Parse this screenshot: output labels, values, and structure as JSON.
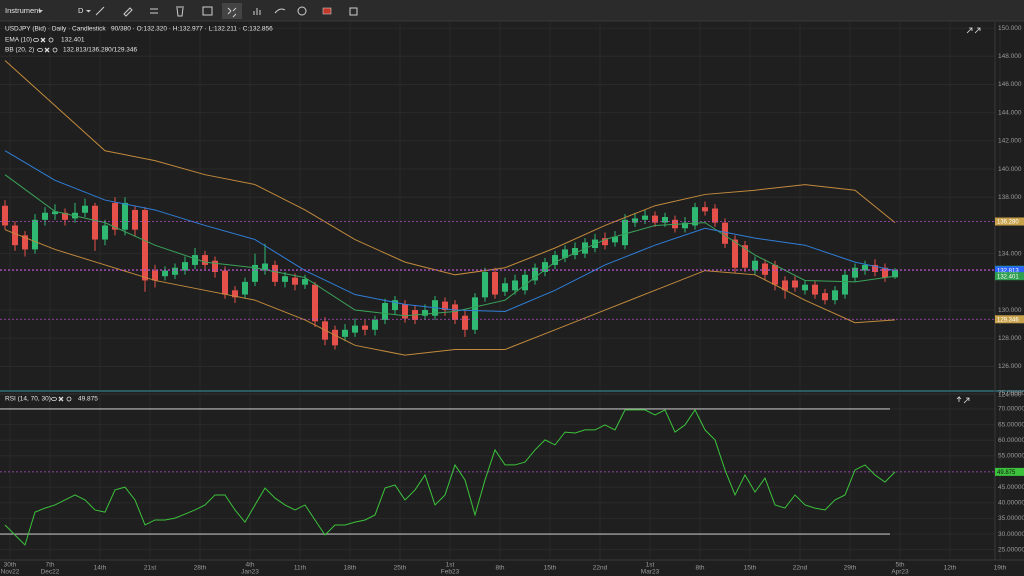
{
  "toolbar": {
    "instrument": "Instrument",
    "period": "D"
  },
  "chart_data": [
    {
      "type": "candlestick",
      "title": "USDJPY (Bid) · Daily · Candlestick",
      "subtitle": "90/380 · O:132.320 · H:132.977 · L:132.211 · C:132.856",
      "xlim": [
        -0.5,
        101.5
      ],
      "ylim": [
        124.33,
        150.43
      ],
      "yticks": [
        {
          "value": 150,
          "label": "150.000"
        },
        {
          "value": 148,
          "label": "148.000"
        },
        {
          "value": 146,
          "label": "146.000"
        },
        {
          "value": 144,
          "label": "144.000"
        },
        {
          "value": 142,
          "label": "142.000"
        },
        {
          "value": 140,
          "label": "140.000"
        },
        {
          "value": 138,
          "label": "138.000"
        },
        {
          "value": 134,
          "label": "134.000"
        },
        {
          "value": 130,
          "label": "130.000"
        },
        {
          "value": 128,
          "label": "128.000"
        },
        {
          "value": 126,
          "label": "126.000"
        },
        {
          "value": 124,
          "label": "124.000"
        }
      ],
      "up_color": "#2eb872",
      "down_color": "#e5504b",
      "open": [
        137.4,
        136.0,
        135.3,
        134.3,
        136.4,
        136.8,
        136.9,
        136.5,
        136.9,
        137.4,
        135.0,
        137.6,
        135.7,
        137.1,
        137.1,
        132.8,
        132.4,
        132.5,
        132.8,
        133.2,
        133.9,
        133.5,
        132.8,
        131.4,
        131.1,
        132.0,
        132.8,
        133.2,
        132.0,
        132.3,
        131.8,
        131.8,
        129.2,
        128.6,
        128.1,
        128.4,
        128.9,
        128.6,
        129.3,
        130.0,
        130.4,
        130.0,
        129.6,
        129.6,
        130.6,
        130.4,
        129.6,
        128.6,
        130.9,
        132.7,
        131.3,
        131.4,
        131.4,
        132.1,
        132.7,
        133.2,
        133.7,
        133.9,
        134.0,
        134.4,
        135.1,
        134.8,
        134.6,
        136.2,
        136.4,
        136.7,
        136.2,
        136.4,
        135.8,
        136.0,
        137.3,
        137.2,
        136.2,
        135.0,
        134.6,
        132.8,
        133.3,
        133.2,
        132.1,
        132.1,
        131.4,
        131.8,
        131.2,
        130.7,
        131.1,
        132.3,
        132.8,
        133.2,
        133.0,
        132.32
      ],
      "high": [
        137.8,
        136.3,
        135.6,
        136.8,
        137.3,
        137.5,
        137.2,
        137.6,
        137.9,
        137.6,
        136.4,
        138.0,
        138.0,
        137.4,
        137.3,
        133.2,
        133.1,
        133.3,
        133.8,
        134.4,
        134.2,
        133.8,
        133.1,
        131.7,
        132.3,
        134.0,
        134.7,
        133.5,
        132.7,
        132.6,
        132.5,
        132.0,
        129.5,
        128.9,
        129.0,
        129.4,
        129.3,
        129.6,
        130.8,
        131.0,
        130.7,
        130.3,
        130.4,
        131.0,
        130.9,
        130.7,
        130.0,
        131.2,
        133.0,
        133.0,
        132.3,
        132.5,
        132.8,
        133.3,
        133.7,
        134.2,
        134.6,
        134.8,
        135.1,
        135.4,
        135.5,
        135.6,
        136.8,
        136.9,
        137.1,
        137.0,
        136.9,
        136.7,
        136.6,
        137.6,
        137.7,
        137.5,
        136.5,
        135.3,
        134.9,
        133.8,
        133.6,
        133.5,
        132.4,
        132.4,
        132.1,
        132.1,
        131.5,
        131.7,
        132.8,
        133.3,
        133.5,
        133.6,
        133.3,
        132.977
      ],
      "low": [
        135.7,
        134.2,
        133.8,
        134.0,
        136.0,
        136.4,
        136.0,
        136.2,
        136.6,
        134.2,
        134.6,
        135.3,
        135.3,
        135.2,
        131.3,
        131.6,
        132.1,
        132.2,
        132.5,
        132.9,
        132.9,
        132.3,
        130.8,
        130.5,
        130.8,
        131.7,
        132.5,
        131.7,
        131.6,
        131.4,
        131.5,
        128.8,
        127.5,
        127.2,
        127.8,
        128.1,
        128.2,
        128.2,
        129.0,
        129.7,
        129.1,
        129.0,
        129.3,
        129.3,
        129.6,
        129.0,
        128.1,
        128.3,
        130.6,
        130.8,
        131.0,
        131.1,
        131.1,
        131.8,
        132.4,
        132.9,
        133.4,
        133.6,
        133.7,
        134.1,
        134.3,
        134.5,
        134.3,
        135.9,
        136.1,
        135.9,
        135.9,
        135.5,
        135.5,
        135.7,
        136.7,
        135.9,
        134.4,
        132.6,
        132.7,
        132.5,
        132.1,
        131.4,
        130.8,
        131.3,
        131.1,
        130.8,
        130.4,
        130.4,
        130.8,
        132.0,
        132.5,
        132.4,
        132.0,
        132.211
      ],
      "close": [
        136.0,
        134.6,
        134.3,
        136.4,
        136.9,
        137.0,
        136.4,
        136.9,
        137.4,
        135.0,
        136.0,
        135.7,
        137.6,
        135.7,
        132.1,
        132.1,
        132.8,
        133.0,
        133.4,
        133.9,
        133.2,
        132.7,
        131.1,
        130.9,
        132.0,
        133.2,
        133.3,
        132.0,
        132.4,
        131.8,
        132.2,
        129.2,
        127.9,
        127.5,
        128.6,
        128.9,
        128.6,
        129.3,
        130.5,
        130.7,
        129.4,
        129.3,
        130.0,
        130.7,
        130.0,
        129.3,
        128.6,
        130.9,
        132.7,
        131.1,
        131.9,
        132.1,
        132.5,
        133.0,
        133.4,
        133.9,
        134.3,
        134.4,
        134.8,
        135.0,
        134.6,
        135.2,
        136.4,
        136.5,
        136.7,
        136.2,
        136.6,
        135.8,
        136.2,
        137.3,
        137.0,
        136.2,
        134.7,
        133.0,
        133.0,
        133.5,
        132.5,
        131.8,
        131.4,
        131.6,
        131.8,
        131.1,
        130.7,
        131.4,
        132.5,
        133.0,
        133.2,
        132.7,
        132.3,
        132.856
      ],
      "indicators": [
        {
          "name": "EMA (10)",
          "value_label": "132.401",
          "lines": [
            {
              "color": "#3aa35a",
              "x": [
                0,
                5,
                10,
                15,
                20,
                25,
                30,
                35,
                40,
                45,
                50,
                55,
                60,
                65,
                70,
                75,
                80,
                85,
                89
              ],
              "values": [
                139.6,
                137.0,
                136.2,
                134.6,
                133.4,
                133.0,
                132.3,
                130.0,
                129.6,
                129.9,
                130.7,
                133.4,
                135.0,
                136.0,
                136.2,
                133.9,
                132.1,
                132.0,
                132.4
              ]
            }
          ]
        },
        {
          "name": "BB (20, 2)",
          "value_label": "132.813/136.280/129.346",
          "lines": [
            {
              "color": "#c28a3c",
              "x": [
                0,
                5,
                10,
                15,
                20,
                25,
                30,
                35,
                40,
                45,
                50,
                55,
                60,
                65,
                70,
                75,
                80,
                85,
                89
              ],
              "values": [
                147.7,
                144.5,
                141.3,
                140.6,
                139.6,
                138.9,
                137.1,
                135.0,
                133.4,
                132.5,
                133.0,
                134.4,
                136.0,
                137.4,
                138.2,
                138.5,
                138.9,
                138.5,
                136.2
              ]
            },
            {
              "color": "#2f7ed8",
              "x": [
                0,
                5,
                10,
                15,
                20,
                25,
                30,
                35,
                40,
                45,
                50,
                55,
                60,
                65,
                70,
                75,
                80,
                85,
                89
              ],
              "values": [
                141.3,
                139.2,
                137.8,
                137.1,
                136.0,
                135.0,
                132.8,
                131.1,
                130.4,
                130.0,
                129.9,
                131.4,
                133.2,
                134.6,
                135.8,
                135.1,
                134.6,
                133.4,
                132.8
              ]
            },
            {
              "color": "#c28a3c",
              "x": [
                0,
                5,
                10,
                15,
                20,
                25,
                30,
                35,
                40,
                45,
                50,
                55,
                60,
                65,
                70,
                75,
                80,
                85,
                89
              ],
              "values": [
                135.7,
                134.3,
                133.2,
                132.1,
                131.4,
                130.7,
                129.3,
                127.5,
                126.8,
                127.2,
                127.2,
                128.6,
                130.0,
                131.4,
                132.8,
                132.5,
                130.7,
                129.1,
                129.3
              ]
            }
          ]
        }
      ],
      "price_labels": [
        {
          "value": 136.28,
          "label": "136.280",
          "color": "#c8a24a",
          "dashed": true
        },
        {
          "value": 132.856,
          "label": "132.856",
          "color": "#26a69a",
          "dashed": true
        },
        {
          "value": 132.813,
          "label": "132.813",
          "color": "#2962ff",
          "dashed": true
        },
        {
          "value": 132.401,
          "label": "132.401",
          "color": "#2e9e4f",
          "dashed": false
        },
        {
          "value": 129.346,
          "label": "129.346",
          "color": "#c8a24a",
          "dashed": true
        }
      ]
    },
    {
      "type": "line",
      "title": "RSI (14, 70, 30)",
      "value_label": "49.875",
      "xlim": [
        -0.5,
        101.5
      ],
      "xticks": [
        {
          "value": 0.5,
          "label": "30th",
          "sublabel": "Nov22"
        },
        {
          "value": 4.5,
          "label": "7th",
          "sublabel": "Dec22"
        },
        {
          "value": 9.5,
          "label": "14th"
        },
        {
          "value": 14.5,
          "label": "21st"
        },
        {
          "value": 19.5,
          "label": "28th"
        },
        {
          "value": 24.5,
          "label": "4th",
          "sublabel": "Jan23"
        },
        {
          "value": 29.5,
          "label": "11th"
        },
        {
          "value": 34.5,
          "label": "18th"
        },
        {
          "value": 39.5,
          "label": "25th"
        },
        {
          "value": 44.5,
          "label": "1st",
          "sublabel": "Feb23"
        },
        {
          "value": 49.5,
          "label": "8th"
        },
        {
          "value": 54.5,
          "label": "15th"
        },
        {
          "value": 59.5,
          "label": "22nd"
        },
        {
          "value": 64.5,
          "label": "1st",
          "sublabel": "Mar23"
        },
        {
          "value": 69.5,
          "label": "8th"
        },
        {
          "value": 74.5,
          "label": "15th"
        },
        {
          "value": 79.5,
          "label": "22nd"
        },
        {
          "value": 84.5,
          "label": "29th"
        },
        {
          "value": 89.5,
          "label": "5th",
          "sublabel": "Apr23"
        },
        {
          "value": 94.5,
          "label": "12th"
        },
        {
          "value": 99.5,
          "label": "19th"
        }
      ],
      "ylim": [
        21.7,
        75.1
      ],
      "yticks": [
        {
          "value": 75,
          "label": "75.000000"
        },
        {
          "value": 70,
          "label": "70.000000"
        },
        {
          "value": 65,
          "label": "65.000000"
        },
        {
          "value": 60,
          "label": "60.000000"
        },
        {
          "value": 55,
          "label": "55.000000"
        },
        {
          "value": 45,
          "label": "45.000000"
        },
        {
          "value": 40,
          "label": "40.000000"
        },
        {
          "value": 35,
          "label": "35.000000"
        },
        {
          "value": 30,
          "label": "30.000000"
        },
        {
          "value": 25,
          "label": "25.000000"
        }
      ],
      "levels": [
        70,
        30
      ],
      "color": "#3cc23c",
      "values": [
        32.9,
        29.7,
        26.5,
        37.0,
        38.3,
        39.3,
        40.9,
        42.5,
        40.9,
        37.7,
        37.0,
        44.1,
        45.0,
        40.9,
        32.9,
        34.5,
        34.5,
        35.1,
        36.4,
        37.7,
        39.3,
        42.5,
        42.5,
        37.7,
        33.8,
        39.3,
        44.7,
        41.5,
        39.3,
        37.7,
        39.3,
        34.5,
        29.7,
        32.9,
        32.9,
        33.8,
        34.5,
        36.1,
        44.7,
        45.7,
        40.9,
        44.1,
        48.9,
        39.3,
        42.5,
        52.1,
        47.3,
        36.1,
        47.3,
        56.9,
        52.1,
        52.1,
        53.0,
        56.9,
        60.1,
        58.5,
        62.6,
        62.3,
        63.3,
        63.3,
        64.9,
        63.3,
        69.7,
        69.7,
        69.7,
        68.1,
        69.7,
        62.6,
        64.9,
        69.7,
        63.3,
        60.1,
        50.5,
        42.5,
        48.9,
        43.4,
        47.9,
        39.3,
        38.3,
        42.5,
        39.3,
        38.3,
        37.7,
        40.9,
        42.5,
        50.5,
        52.1,
        48.9,
        46.6,
        49.875
      ],
      "price_label": {
        "value": 49.875,
        "label": "49.875",
        "color": "#3cc23c"
      }
    }
  ]
}
